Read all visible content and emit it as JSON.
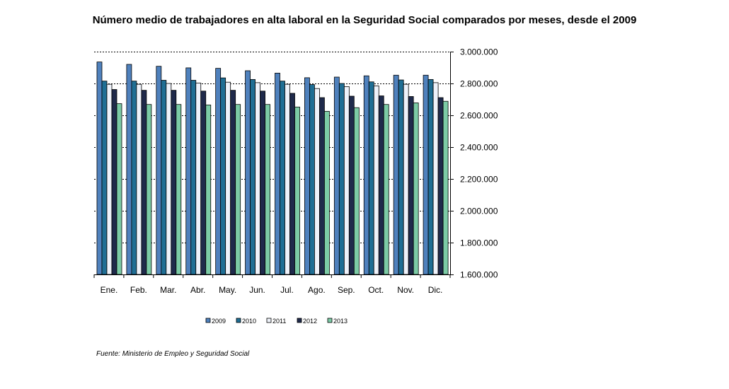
{
  "chart_data": {
    "type": "bar",
    "title": "Número medio de trabajadores en alta laboral en la Seguridad Social comparados por meses, desde el 2009",
    "xlabel": "",
    "ylabel": "",
    "categories": [
      "Ene.",
      "Feb.",
      "Mar.",
      "Abr.",
      "May.",
      "Jun.",
      "Jul.",
      "Ago.",
      "Sep.",
      "Oct.",
      "Nov.",
      "Dic."
    ],
    "ylim": [
      1600000,
      3000000
    ],
    "yticks": [
      1600000,
      1800000,
      2000000,
      2200000,
      2400000,
      2600000,
      2800000,
      3000000
    ],
    "ytick_labels": [
      "1.600.000",
      "1.800.000",
      "2.000.000",
      "2.200.000",
      "2.400.000",
      "2.600.000",
      "2.800.000",
      "3.000.000"
    ],
    "gridlines": "dashed",
    "y_axis_position": "right",
    "legend_position": "bottom",
    "series": [
      {
        "name": "2009",
        "color": "#4F81BD",
        "values": [
          2935000,
          2920000,
          2908000,
          2898000,
          2895000,
          2880000,
          2865000,
          2836000,
          2840000,
          2848000,
          2852000,
          2852000
        ]
      },
      {
        "name": "2010",
        "color": "#1F6E94",
        "values": [
          2815000,
          2815000,
          2820000,
          2820000,
          2835000,
          2825000,
          2815000,
          2793000,
          2800000,
          2810000,
          2822000,
          2825000
        ]
      },
      {
        "name": "2011",
        "color": "#EEF2FA",
        "values": [
          2795000,
          2795000,
          2800000,
          2803000,
          2808000,
          2805000,
          2795000,
          2768000,
          2780000,
          2785000,
          2795000,
          2805000
        ]
      },
      {
        "name": "2012",
        "color": "#1F2A4B",
        "values": [
          2762000,
          2757000,
          2757000,
          2752000,
          2757000,
          2752000,
          2738000,
          2711000,
          2720000,
          2722000,
          2718000,
          2711000
        ]
      },
      {
        "name": "2013",
        "color": "#7CCBA6",
        "values": [
          2673000,
          2668000,
          2668000,
          2665000,
          2668000,
          2668000,
          2652000,
          2625000,
          2648000,
          2668000,
          2678000,
          2688000
        ]
      }
    ]
  },
  "source": "Fuente: Ministerio de Empleo y Seguridad Social"
}
